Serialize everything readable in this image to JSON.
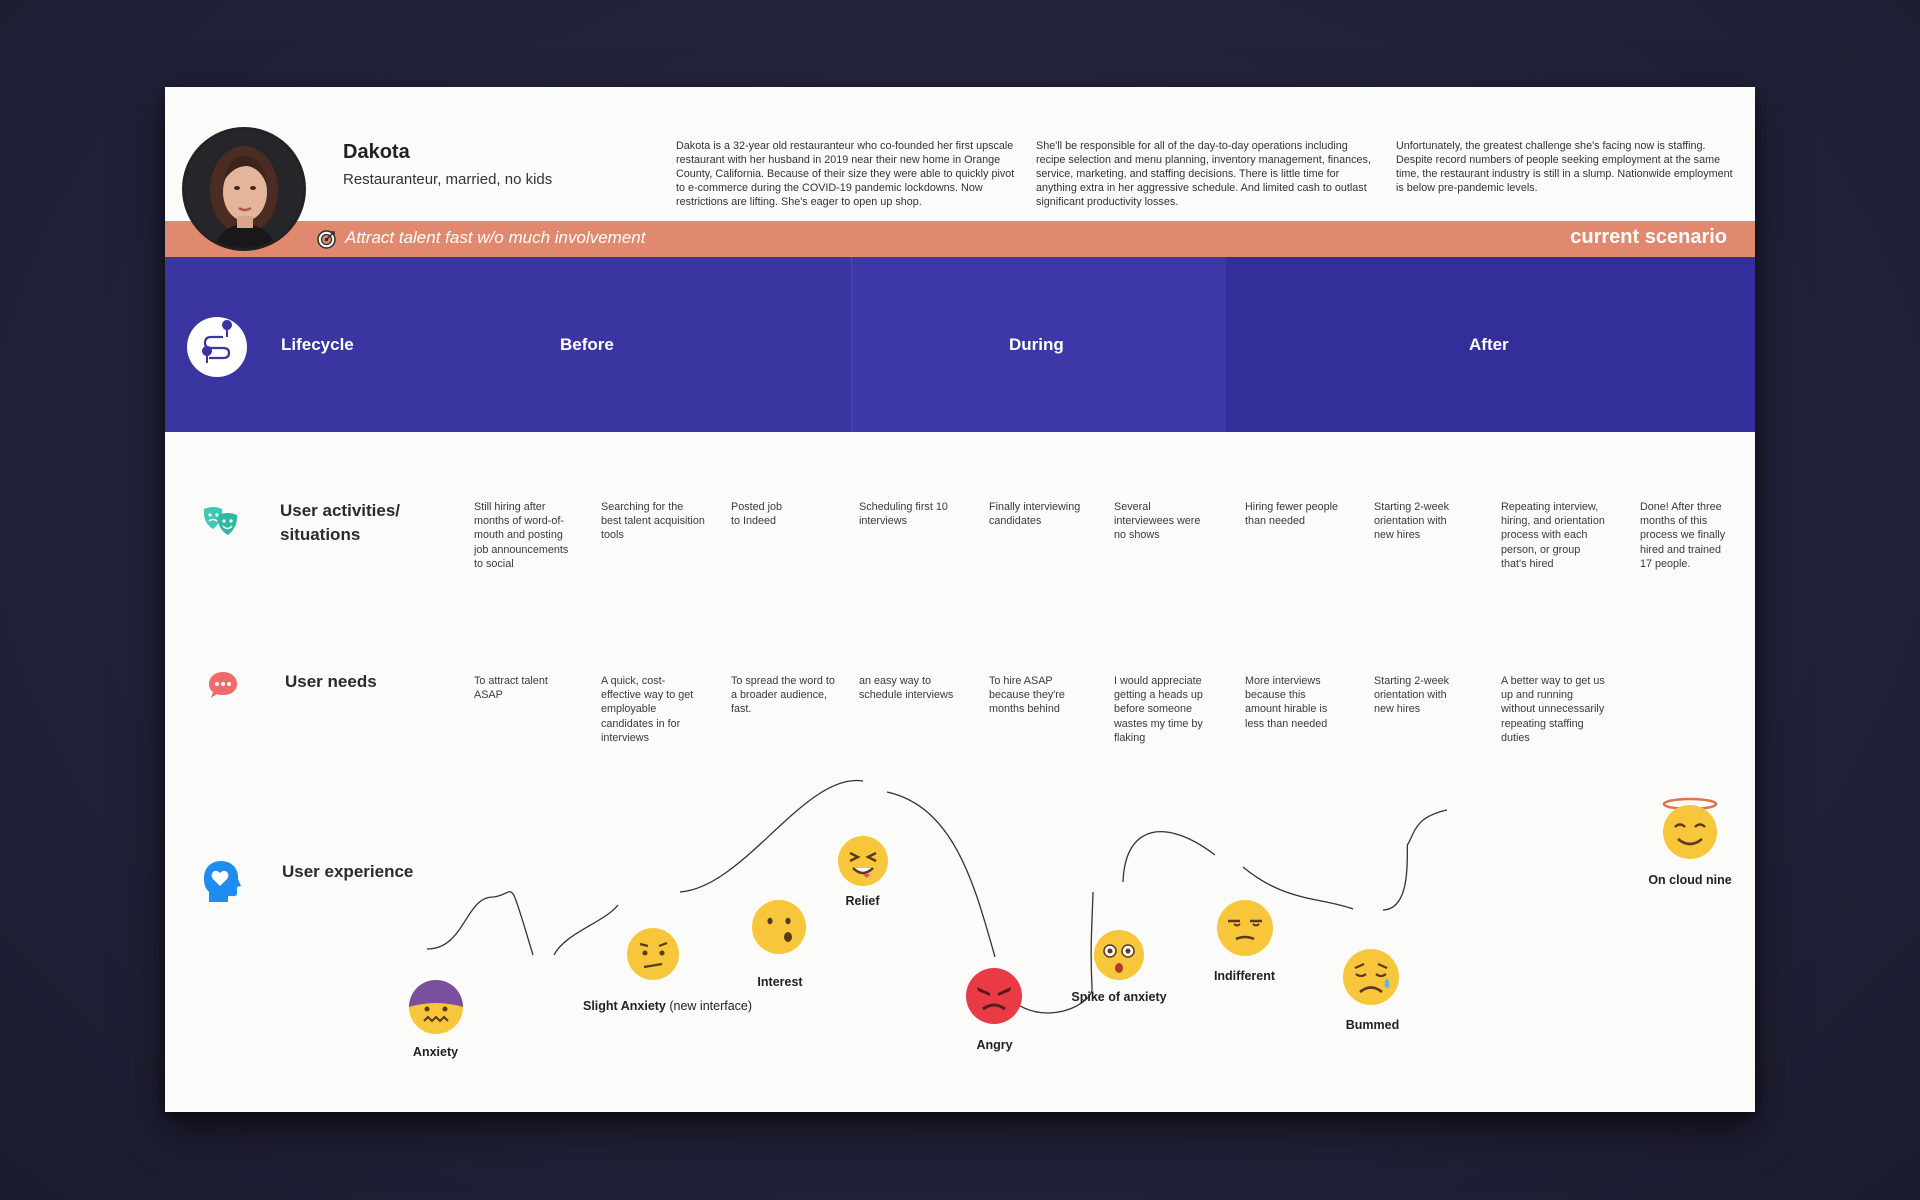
{
  "persona": {
    "name": "Dakota",
    "subtitle": "Restauranteur, married, no kids",
    "bio": [
      "Dakota is a 32-year old restauranteur who co-founded her first upscale restaurant with her husband in 2019 near their new home in Orange County, California. Because of their size they were able to quickly pivot to e-commerce during the COVID-19 pandemic lockdowns. Now restrictions are lifting. She's eager to open up shop.",
      "She'll be responsible for all of the day-to-day operations including recipe selection and menu planning, inventory management, finances, service, marketing, and staffing decisions. There is little time for anything extra in her aggressive schedule. And limited cash to outlast significant productivity losses.",
      "Unfortunately, the greatest challenge she's facing now is staffing. Despite record numbers of people seeking employment at the same time, the restaurant industry is still in a slump. Nationwide employment is below pre-pandemic levels."
    ]
  },
  "goal": {
    "text": "Attract talent fast w/o much involvement",
    "icon": "target-icon",
    "scenario": "current scenario"
  },
  "lifecycle": {
    "title": "Lifecycle",
    "icon": "route-icon",
    "phases": [
      "Before",
      "During",
      "After"
    ]
  },
  "activities": {
    "title_line1": "User activities/",
    "title_line2": "situations",
    "icon": "theater-masks-icon",
    "items": [
      "Still hiring after months of word-of-mouth and posting job announcements to social",
      "Searching for the best talent acquisition tools",
      "Posted job to Indeed",
      "Scheduling first 10 interviews",
      "Finally interviewing candidates",
      "Several interviewees were no shows",
      "Hiring fewer people than needed",
      "Starting 2-week orientation with new hires",
      "Repeating interview, hiring, and orientation process with each person, or group that's hired",
      "Done! After three months of this process we finally hired and trained 17 people."
    ]
  },
  "needs": {
    "title": "User needs",
    "icon": "chat-bubble-icon",
    "items": [
      "To attract talent ASAP",
      "A quick, cost-effective way to get employable candidates in for interviews",
      "To spread the word to a broader audience, fast.",
      "an easy way to schedule interviews",
      "To hire ASAP because they're months behind",
      "I would appreciate getting a heads up before someone wastes my time by flaking",
      "More interviews because this amount hirable is less than needed",
      "Starting 2-week orientation with new hires",
      "A better way to get us up and running without unnecessarily repeating staffing duties"
    ]
  },
  "experience": {
    "title": "User experience",
    "icon": "head-heart-icon",
    "emotions": [
      {
        "label": "Anxiety",
        "extra": "",
        "face": "anxious"
      },
      {
        "label": "Slight Anxiety",
        "extra": " (new interface)",
        "face": "skeptical"
      },
      {
        "label": "Interest",
        "extra": "",
        "face": "interested"
      },
      {
        "label": "Relief",
        "extra": "",
        "face": "relieved"
      },
      {
        "label": "Angry",
        "extra": "",
        "face": "angry"
      },
      {
        "label": "Spike of anxiety",
        "extra": "",
        "face": "shocked"
      },
      {
        "label": "Indifferent",
        "extra": "",
        "face": "unamused"
      },
      {
        "label": "Bummed",
        "extra": "",
        "face": "sad"
      },
      {
        "label": "On cloud nine",
        "extra": "",
        "face": "angel"
      }
    ]
  },
  "colors": {
    "goal_bar": "#e0896f",
    "lifecycle_band": "#3b35a2",
    "emoji_yellow": "#f7c63b",
    "angry_red": "#e83b46",
    "accent_teal": "#3cc9b4",
    "accent_coral": "#ef6a6a",
    "accent_blue": "#1f8cf0"
  }
}
